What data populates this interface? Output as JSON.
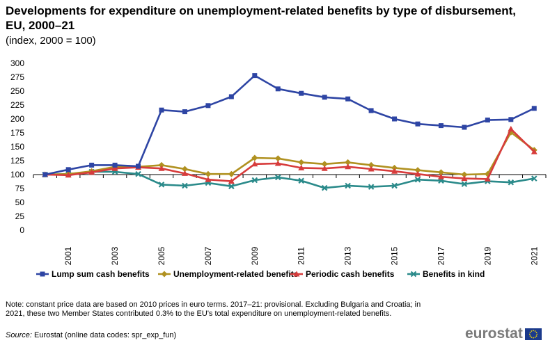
{
  "header": {
    "title": "Developments for expenditure on unemployment-related benefits by type of disbursement, EU, 2000–21",
    "subtitle": "(index, 2000 = 100)"
  },
  "chart_data": {
    "type": "line",
    "title": "Developments for expenditure on unemployment-related benefits by type of disbursement, EU, 2000–21",
    "subtitle": "(index, 2000 = 100)",
    "x": [
      2000,
      2001,
      2002,
      2003,
      2004,
      2005,
      2006,
      2007,
      2008,
      2009,
      2010,
      2011,
      2012,
      2013,
      2014,
      2015,
      2016,
      2017,
      2018,
      2019,
      2020,
      2021
    ],
    "x_tick_labels": [
      "2001",
      "2003",
      "2005",
      "2007",
      "2009",
      "2011",
      "2013",
      "2015",
      "2017",
      "2019",
      "2021"
    ],
    "y_ticks": [
      "0",
      "25",
      "50",
      "75",
      "100",
      "125",
      "150",
      "175",
      "200",
      "225",
      "250",
      "275",
      "300"
    ],
    "ylim": [
      0,
      300
    ],
    "xlabel": "",
    "ylabel": "",
    "grid": false,
    "legend_position": "bottom",
    "series": [
      {
        "name": "Lump sum cash benefits",
        "color": "#2e45a4",
        "marker": "square",
        "values": [
          100,
          109,
          117,
          117,
          115,
          216,
          213,
          224,
          240,
          278,
          254,
          246,
          239,
          236,
          215,
          200,
          191,
          188,
          185,
          198,
          199,
          219
        ]
      },
      {
        "name": "Unemployment-related benefits",
        "color": "#b09120",
        "marker": "diamond",
        "values": [
          100,
          101,
          106,
          114,
          114,
          117,
          110,
          101,
          101,
          130,
          129,
          122,
          119,
          122,
          117,
          112,
          108,
          104,
          100,
          101,
          176,
          144
        ]
      },
      {
        "name": "Periodic cash benefits",
        "color": "#d73c3c",
        "marker": "triangle",
        "values": [
          100,
          99,
          104,
          111,
          113,
          111,
          102,
          91,
          88,
          119,
          120,
          112,
          111,
          114,
          110,
          106,
          101,
          96,
          93,
          92,
          182,
          141
        ]
      },
      {
        "name": "Benefits in kind",
        "color": "#2a8a8a",
        "marker": "x",
        "values": [
          100,
          101,
          105,
          105,
          101,
          82,
          80,
          85,
          79,
          90,
          95,
          89,
          76,
          80,
          78,
          80,
          91,
          89,
          83,
          88,
          86,
          93
        ]
      }
    ]
  },
  "footer": {
    "note": "Note: constant price data are based on 2010 prices in euro terms. 2017–21: provisional.  Excluding  Bulgaria and Croatia; in 2021, these two Member States contributed 0.3% to the EU's total expenditure  on unemployment-related benefits.",
    "source_label": "Source:",
    "source_text": " Eurostat (online data codes: spr_exp_fun)",
    "logo_text": "eurostat"
  },
  "colors": {
    "axis": "#000000",
    "flag_blue": "#1b3a8c",
    "flag_star": "#ffdd00"
  }
}
